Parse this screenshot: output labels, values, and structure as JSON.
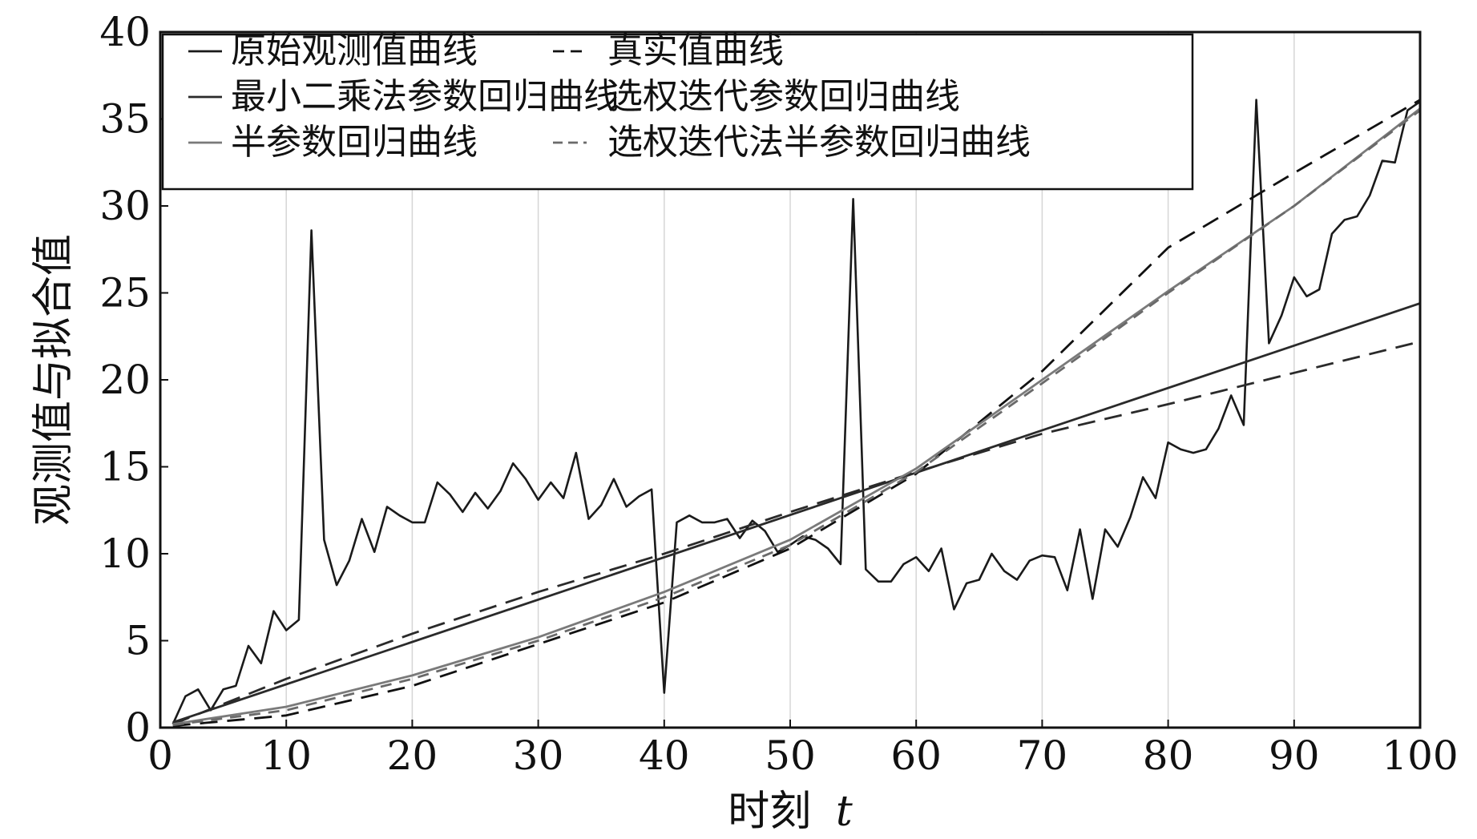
{
  "chart_data": {
    "type": "line",
    "xlabel": "时刻",
    "xlabel_var": "t",
    "ylabel": "观测值与拟合值",
    "xlim": [
      0,
      100
    ],
    "ylim": [
      0,
      40
    ],
    "xticks": [
      0,
      10,
      20,
      30,
      40,
      50,
      60,
      70,
      80,
      90,
      100
    ],
    "yticks": [
      0,
      5,
      10,
      15,
      20,
      25,
      30,
      35,
      40
    ],
    "grid": "vertical",
    "legend_position": "top-left",
    "series": [
      {
        "name": "原始观测值曲线",
        "color": "#1a1a1a",
        "dash": "solid",
        "x": [
          1,
          2,
          3,
          4,
          5,
          6,
          7,
          8,
          9,
          10,
          11,
          12,
          13,
          14,
          15,
          16,
          17,
          18,
          19,
          20,
          21,
          22,
          23,
          24,
          25,
          26,
          27,
          28,
          29,
          30,
          31,
          32,
          33,
          34,
          35,
          36,
          37,
          38,
          39,
          40,
          41,
          42,
          43,
          44,
          45,
          46,
          47,
          48,
          49,
          50,
          51,
          52,
          53,
          54,
          55,
          56,
          57,
          58,
          59,
          60,
          61,
          62,
          63,
          64,
          65,
          66,
          67,
          68,
          69,
          70,
          71,
          72,
          73,
          74,
          75,
          76,
          77,
          78,
          79,
          80,
          81,
          82,
          83,
          84,
          85,
          86,
          87,
          88,
          89,
          90,
          91,
          92,
          93,
          94,
          95,
          96,
          97,
          98,
          99,
          100
        ],
        "values": [
          0.2,
          1.8,
          2.2,
          1.0,
          2.2,
          2.4,
          4.7,
          3.7,
          6.7,
          5.6,
          6.2,
          28.6,
          10.8,
          8.2,
          9.6,
          12.0,
          10.1,
          12.7,
          12.2,
          11.8,
          11.8,
          14.1,
          13.4,
          12.4,
          13.5,
          12.6,
          13.6,
          15.2,
          14.3,
          13.1,
          14.1,
          13.2,
          15.8,
          12.0,
          12.8,
          14.3,
          12.7,
          13.3,
          13.7,
          2.0,
          11.8,
          12.2,
          11.8,
          11.8,
          12.0,
          10.9,
          11.9,
          11.3,
          10.1,
          10.5,
          11.0,
          10.8,
          10.3,
          9.4,
          30.4,
          9.1,
          8.4,
          8.4,
          9.4,
          9.8,
          9.0,
          10.3,
          6.8,
          8.3,
          8.5,
          10.0,
          9.0,
          8.5,
          9.6,
          9.9,
          9.8,
          7.9,
          11.4,
          7.4,
          11.4,
          10.4,
          12.1,
          14.4,
          13.2,
          16.4,
          16.0,
          15.8,
          16.0,
          17.2,
          19.1,
          17.4,
          36.1,
          22.1,
          23.7,
          25.9,
          24.8,
          25.2,
          28.4,
          29.2,
          29.4,
          30.6,
          32.6,
          32.5,
          35.5,
          36.0
        ]
      },
      {
        "name": "真实值曲线",
        "color": "#111111",
        "dash": "long-dash",
        "x": [
          1,
          10,
          20,
          30,
          40,
          50,
          60,
          70,
          80,
          90,
          100
        ],
        "values": [
          0.1,
          0.7,
          2.4,
          4.8,
          7.2,
          10.3,
          14.6,
          20.5,
          27.6,
          31.9,
          36.1
        ]
      },
      {
        "name": "最小二乘法参数回归曲线",
        "color": "#2a2a2a",
        "dash": "solid",
        "x": [
          1,
          100
        ],
        "values": [
          0.3,
          24.4
        ]
      },
      {
        "name": "选权迭代参数回归曲线",
        "color": "#2a2a2a",
        "dash": "long-dash",
        "x": [
          1,
          10,
          20,
          30,
          40,
          50,
          60,
          70,
          80,
          90,
          100
        ],
        "values": [
          0.2,
          2.8,
          5.4,
          7.8,
          10.0,
          12.4,
          14.7,
          16.9,
          18.6,
          20.4,
          22.2
        ]
      },
      {
        "name": "半参数回归曲线",
        "color": "#7a7a7a",
        "dash": "solid",
        "x": [
          1,
          10,
          20,
          30,
          40,
          50,
          60,
          70,
          80,
          90,
          100
        ],
        "values": [
          0.2,
          1.2,
          3.0,
          5.2,
          7.8,
          10.8,
          14.9,
          20.0,
          25.1,
          30.0,
          35.6
        ]
      },
      {
        "name": "选权迭代法半参数回归曲线",
        "color": "#6a6a6a",
        "dash": "short-dash",
        "x": [
          1,
          10,
          20,
          30,
          40,
          50,
          60,
          70,
          80,
          90,
          100
        ],
        "values": [
          0.15,
          1.0,
          2.8,
          5.0,
          7.5,
          10.5,
          14.7,
          19.8,
          25.0,
          30.0,
          35.5
        ]
      }
    ]
  }
}
